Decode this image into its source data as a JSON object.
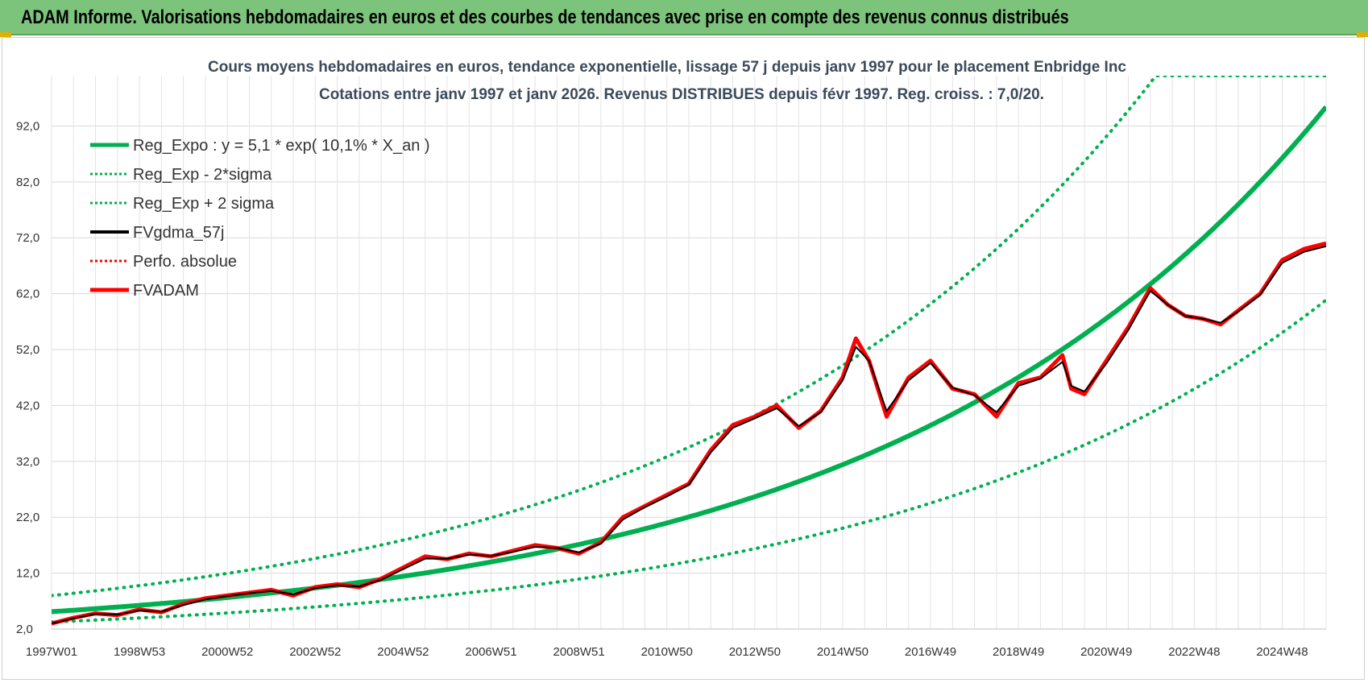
{
  "header": {
    "title": "ADAM Informe. Valorisations hebdomadaires en euros et des courbes de tendances avec prise en compte des revenus connus distribués"
  },
  "chart_data": {
    "type": "line",
    "title": "Cours moyens hebdomadaires en euros, tendance exponentielle, lissage 57 j depuis janv 1997  pour le placement Enbridge Inc",
    "subtitle": "Cotations entre janv 1997 et janv 2026. Revenus DISTRIBUES depuis févr 1997. Reg. croiss. : 7,0/20.",
    "xlabel": "",
    "ylabel": "",
    "xlim": [
      1997.0,
      2026.0
    ],
    "ylim": [
      2.0,
      101.0
    ],
    "y_ticks": [
      2.0,
      12.0,
      22.0,
      32.0,
      42.0,
      52.0,
      62.0,
      72.0,
      82.0,
      92.0
    ],
    "y_tick_labels": [
      "2,0",
      "12,0",
      "22,0",
      "32,0",
      "42,0",
      "52,0",
      "62,0",
      "72,0",
      "82,0",
      "92,0"
    ],
    "x_ticks": [
      1997.0,
      1999.0,
      2001.0,
      2003.0,
      2005.0,
      2007.0,
      2009.0,
      2011.0,
      2013.0,
      2015.0,
      2017.0,
      2019.0,
      2021.0,
      2023.0,
      2025.0
    ],
    "x_tick_labels": [
      "1997W01",
      "1998W53",
      "2000W52",
      "2002W52",
      "2004W52",
      "2006W51",
      "2008W51",
      "2010W50",
      "2012W50",
      "2014W50",
      "2016W49",
      "2018W49",
      "2020W49",
      "2022W48",
      "2024W48"
    ],
    "grid": true,
    "legend": [
      {
        "label": "Reg_Expo : y = 5,1 * exp( 10,1% *  X_an )",
        "color": "#00b050",
        "style": "solid-thick"
      },
      {
        "label": "Reg_Exp - 2*sigma",
        "color": "#00b050",
        "style": "dotted"
      },
      {
        "label": "Reg_Exp + 2 sigma",
        "color": "#00b050",
        "style": "dotted"
      },
      {
        "label": "FVgdma_57j",
        "color": "#000000",
        "style": "solid"
      },
      {
        "label": "Perfo. absolue",
        "color": "#ff0000",
        "style": "dotted"
      },
      {
        "label": "FVADAM",
        "color": "#ff0000",
        "style": "solid-thick"
      }
    ],
    "regression": {
      "a": 5.1,
      "growth_rate": 0.101,
      "low_factor": 0.638,
      "high_factor": 1.565
    },
    "series": [
      {
        "name": "FVADAM",
        "color": "#ff0000",
        "x": [
          1997.0,
          1997.5,
          1998.0,
          1998.5,
          1999.0,
          1999.5,
          2000.0,
          2000.5,
          2001.0,
          2001.5,
          2002.0,
          2002.5,
          2003.0,
          2003.5,
          2004.0,
          2004.5,
          2005.0,
          2005.5,
          2006.0,
          2006.5,
          2007.0,
          2007.5,
          2008.0,
          2008.5,
          2009.0,
          2009.5,
          2010.0,
          2010.5,
          2011.0,
          2011.5,
          2012.0,
          2012.5,
          2013.0,
          2013.5,
          2014.0,
          2014.5,
          2015.0,
          2015.3,
          2015.6,
          2016.0,
          2016.5,
          2017.0,
          2017.5,
          2018.0,
          2018.5,
          2019.0,
          2019.5,
          2020.0,
          2020.2,
          2020.5,
          2021.0,
          2021.5,
          2022.0,
          2022.4,
          2022.8,
          2023.2,
          2023.6,
          2024.0,
          2024.5,
          2025.0,
          2025.5,
          2026.0
        ],
        "values": [
          3.0,
          4.0,
          4.8,
          4.5,
          5.5,
          5.0,
          6.5,
          7.5,
          8.0,
          8.5,
          9.0,
          8.0,
          9.5,
          10.0,
          9.5,
          11.0,
          13.0,
          15.0,
          14.5,
          15.5,
          15.0,
          16.0,
          17.0,
          16.5,
          15.5,
          17.5,
          22.0,
          24.0,
          26.0,
          28.0,
          34.0,
          38.5,
          40.0,
          42.0,
          38.0,
          41.0,
          47.0,
          54.0,
          50.0,
          40.0,
          47.0,
          50.0,
          45.0,
          44.0,
          40.0,
          46.0,
          47.0,
          51.0,
          45.0,
          44.0,
          50.0,
          56.0,
          63.0,
          60.0,
          58.0,
          57.5,
          56.5,
          59.0,
          62.0,
          68.0,
          70.0,
          71.0
        ]
      },
      {
        "name": "FVgdma_57j",
        "color": "#000000",
        "x": [
          1997.0,
          1997.5,
          1998.0,
          1998.5,
          1999.0,
          1999.5,
          2000.0,
          2000.5,
          2001.0,
          2001.5,
          2002.0,
          2002.5,
          2003.0,
          2003.5,
          2004.0,
          2004.5,
          2005.0,
          2005.5,
          2006.0,
          2006.5,
          2007.0,
          2007.5,
          2008.0,
          2008.5,
          2009.0,
          2009.5,
          2010.0,
          2010.5,
          2011.0,
          2011.5,
          2012.0,
          2012.5,
          2013.0,
          2013.5,
          2014.0,
          2014.5,
          2015.0,
          2015.3,
          2015.6,
          2016.0,
          2016.5,
          2017.0,
          2017.5,
          2018.0,
          2018.5,
          2019.0,
          2019.5,
          2020.0,
          2020.2,
          2020.5,
          2021.0,
          2021.5,
          2022.0,
          2022.4,
          2022.8,
          2023.2,
          2023.6,
          2024.0,
          2024.5,
          2025.0,
          2025.5,
          2026.0
        ],
        "values": [
          3.0,
          3.9,
          4.7,
          4.6,
          5.3,
          5.1,
          6.3,
          7.3,
          7.9,
          8.4,
          8.8,
          8.2,
          9.3,
          9.8,
          9.6,
          10.8,
          12.7,
          14.6,
          14.6,
          15.3,
          15.1,
          15.8,
          16.7,
          16.5,
          15.7,
          17.3,
          21.6,
          23.8,
          25.7,
          27.8,
          33.6,
          38.0,
          39.7,
          41.5,
          38.3,
          40.8,
          46.5,
          52.5,
          50.0,
          41.0,
          46.5,
          49.6,
          45.2,
          43.8,
          40.8,
          45.5,
          46.8,
          49.8,
          45.5,
          44.5,
          49.5,
          55.5,
          62.5,
          60.0,
          58.0,
          57.5,
          56.8,
          58.8,
          61.8,
          67.5,
          69.5,
          70.5
        ]
      }
    ]
  }
}
